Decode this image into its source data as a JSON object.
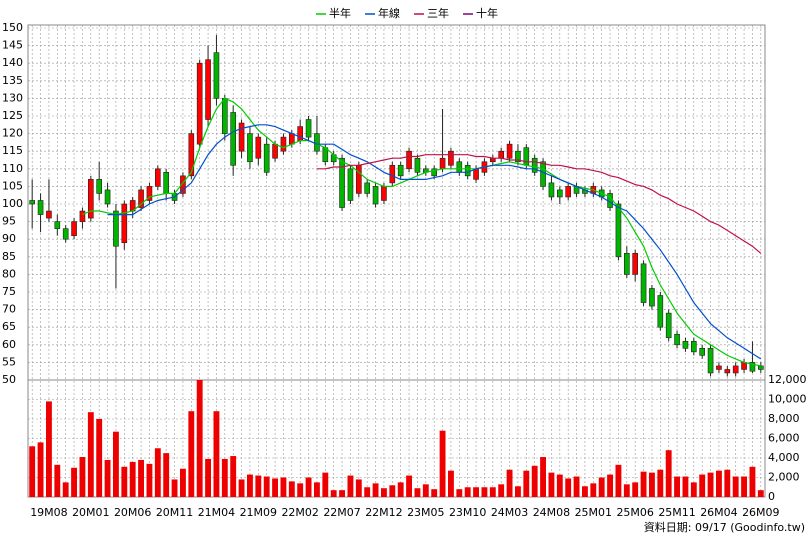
{
  "chart_data": {
    "type": "candlestick",
    "categories": [
      null,
      null,
      "19M08",
      null,
      null,
      null,
      null,
      "20M01",
      null,
      null,
      null,
      null,
      "20M06",
      null,
      null,
      null,
      null,
      "20M11",
      null,
      null,
      null,
      null,
      "21M04",
      null,
      null,
      null,
      null,
      "21M09",
      null,
      null,
      null,
      null,
      "22M02",
      null,
      null,
      null,
      null,
      "22M07",
      null,
      null,
      null,
      null,
      "22M12",
      null,
      null,
      null,
      null,
      "23M05",
      null,
      null,
      null,
      null,
      "23M10",
      null,
      null,
      null,
      null,
      "24M03",
      null,
      null,
      null,
      null,
      "24M08",
      null,
      null,
      null,
      null,
      "25M01",
      null,
      null,
      null,
      null,
      "25M06",
      null,
      null,
      null,
      null,
      "25M11",
      null,
      null,
      null,
      null,
      "26M04",
      null,
      null,
      null,
      null,
      "26M09"
    ],
    "open": [
      101,
      101,
      96,
      95,
      93,
      91,
      95,
      96,
      107,
      104,
      98,
      89,
      98,
      99,
      101,
      105,
      109,
      103,
      103,
      108,
      117,
      124,
      143,
      130,
      126,
      115,
      120,
      113,
      117,
      113,
      115,
      117,
      118,
      124,
      120,
      116,
      114,
      113,
      110,
      103,
      106,
      105,
      101,
      106,
      111,
      110,
      113,
      110,
      110,
      110,
      111,
      112,
      111,
      107,
      109,
      112,
      113,
      113,
      115,
      116,
      113,
      112,
      106,
      104,
      102,
      105,
      104,
      103,
      104,
      103,
      100,
      86,
      80,
      83,
      76,
      74,
      69,
      63,
      61,
      61,
      59,
      59,
      53,
      52,
      52,
      53,
      55,
      54
    ],
    "high": [
      107,
      103,
      107,
      97,
      94,
      96,
      99,
      108,
      112,
      106,
      100,
      101,
      102,
      105,
      106,
      111,
      110,
      104,
      109,
      121,
      141,
      145,
      148,
      131,
      128,
      124,
      122,
      120,
      119,
      118,
      120,
      121,
      124,
      125,
      125,
      117,
      115,
      114,
      111,
      112,
      107,
      106,
      106,
      112,
      112,
      116,
      114,
      111,
      111,
      127,
      116,
      113,
      112,
      111,
      113,
      114,
      116,
      118,
      117,
      117,
      114,
      113,
      108,
      105,
      106,
      106,
      105,
      106,
      105,
      104,
      101,
      88,
      87,
      84,
      77,
      75,
      70,
      64,
      62,
      62,
      60,
      60,
      55,
      54,
      55,
      56,
      61,
      55
    ],
    "low": [
      93,
      92,
      95,
      91,
      89,
      90,
      93,
      95,
      101,
      99,
      76,
      87,
      96,
      98,
      100,
      104,
      101,
      100,
      102,
      107,
      116,
      122,
      128,
      118,
      108,
      113,
      110,
      111,
      108,
      112,
      114,
      116,
      117,
      118,
      114,
      111,
      111,
      98,
      100,
      102,
      102,
      99,
      100,
      105,
      107,
      109,
      108,
      108,
      107,
      109,
      110,
      108,
      107,
      106,
      108,
      111,
      112,
      112,
      111,
      110,
      108,
      104,
      101,
      100,
      101,
      102,
      102,
      102,
      101,
      98,
      84,
      79,
      78,
      71,
      70,
      64,
      61,
      59,
      58,
      57,
      56,
      51,
      52,
      51,
      51,
      52,
      52,
      52
    ],
    "close": [
      100,
      97,
      98,
      93,
      90,
      95,
      98,
      107,
      103,
      100,
      88,
      100,
      101,
      104,
      105,
      110,
      103,
      101,
      108,
      120,
      140,
      141,
      130,
      120,
      111,
      123,
      112,
      119,
      109,
      117,
      119,
      120,
      122,
      119,
      115,
      112,
      112,
      99,
      101,
      111,
      103,
      100,
      105,
      111,
      108,
      115,
      109,
      109,
      108,
      113,
      115,
      109,
      108,
      110,
      112,
      113,
      115,
      117,
      112,
      111,
      109,
      105,
      102,
      102,
      105,
      103,
      103,
      105,
      102,
      99,
      85,
      80,
      86,
      72,
      71,
      65,
      62,
      60,
      59,
      58,
      57,
      52,
      54,
      53,
      54,
      55,
      52.5,
      53
    ],
    "up_color": "#ff0000",
    "down_color": "#00b400",
    "series": [
      {
        "name": "半年",
        "color": "#00cc00",
        "values": [
          null,
          null,
          null,
          null,
          null,
          null,
          97,
          98,
          98,
          97.5,
          97,
          97.5,
          98,
          100,
          102,
          102.5,
          103,
          103,
          106,
          109,
          116,
          122,
          127,
          130,
          129,
          127,
          124,
          121,
          119,
          117,
          116,
          117,
          118,
          118,
          117,
          116,
          114,
          112,
          111,
          109,
          107,
          106,
          105,
          105,
          106,
          107,
          108,
          109,
          109.5,
          110,
          110,
          110,
          110,
          110,
          110.5,
          111,
          111.5,
          112,
          111.5,
          111,
          110.5,
          110,
          108.5,
          107,
          106,
          105,
          104.5,
          104,
          103,
          102,
          99,
          96,
          92,
          88,
          82,
          77,
          73,
          69,
          66,
          63,
          61.5,
          60,
          58.5,
          57,
          56,
          55,
          54.5,
          54
        ]
      },
      {
        "name": "年線",
        "color": "#0050d0",
        "values": [
          null,
          null,
          null,
          null,
          null,
          null,
          null,
          null,
          null,
          97,
          97,
          97,
          97,
          98.5,
          100,
          101,
          101.5,
          102,
          104,
          106,
          110,
          114,
          117,
          119,
          120.5,
          121.5,
          122,
          122.5,
          122.5,
          122,
          121,
          120,
          119,
          118,
          117,
          117,
          117,
          115.5,
          114,
          113,
          112,
          110.5,
          109,
          108,
          107,
          107,
          107,
          107,
          107.5,
          108,
          109,
          109,
          109,
          110,
          110.5,
          111,
          111,
          111,
          110.5,
          110,
          110,
          109,
          108,
          107,
          106,
          105,
          104,
          103,
          102,
          100.5,
          99,
          98,
          95.5,
          93,
          90,
          87,
          83.5,
          80,
          76,
          72,
          69,
          66,
          64,
          62,
          60.5,
          59,
          57.5,
          56
        ]
      },
      {
        "name": "三年",
        "color": "#c0104a",
        "values": [
          null,
          null,
          null,
          null,
          null,
          null,
          null,
          null,
          null,
          null,
          null,
          null,
          null,
          null,
          null,
          null,
          null,
          null,
          null,
          null,
          null,
          null,
          null,
          null,
          null,
          null,
          null,
          null,
          null,
          null,
          null,
          null,
          null,
          null,
          110,
          110,
          110.5,
          110.5,
          111,
          111,
          111.5,
          112,
          112.5,
          113,
          113,
          113.5,
          113.5,
          114,
          114,
          114,
          114,
          114,
          114,
          113.5,
          113.5,
          113,
          113,
          112.5,
          112.5,
          112,
          112,
          111.5,
          111,
          111,
          110.5,
          110,
          110,
          109.5,
          109,
          108,
          107.5,
          106.5,
          105.5,
          105,
          104,
          102.5,
          101.5,
          100,
          99,
          98,
          96.5,
          95,
          94,
          92.5,
          91,
          89.5,
          88,
          86
        ]
      },
      {
        "name": "十年",
        "color": "#800080"
      }
    ],
    "ylim": [
      50,
      150
    ],
    "yticks": [
      50,
      55,
      60,
      65,
      70,
      75,
      80,
      85,
      90,
      95,
      100,
      105,
      110,
      115,
      120,
      125,
      130,
      135,
      140,
      145,
      150
    ],
    "grid": true,
    "volume": {
      "type": "bar",
      "color": "#ee0000",
      "values": [
        5200,
        5600,
        9800,
        3300,
        1500,
        3000,
        4100,
        8700,
        8000,
        3800,
        6700,
        3100,
        3600,
        3800,
        3400,
        5000,
        4500,
        1800,
        2900,
        8800,
        12000,
        3900,
        8800,
        3900,
        4200,
        1800,
        2300,
        2200,
        2100,
        1900,
        2000,
        1600,
        1400,
        2000,
        1500,
        2500,
        700,
        700,
        2200,
        1800,
        1000,
        1400,
        900,
        1200,
        1500,
        2200,
        900,
        1300,
        800,
        6800,
        2700,
        800,
        1000,
        1000,
        1000,
        1000,
        1300,
        2800,
        1100,
        2700,
        3200,
        4100,
        2500,
        2300,
        1900,
        2100,
        1100,
        1400,
        2000,
        2300,
        3300,
        1300,
        1500,
        2600,
        2500,
        2800,
        4800,
        2100,
        2100,
        1500,
        2300,
        2500,
        2700,
        2800,
        2100,
        2100,
        3100,
        700
      ],
      "y2lim": [
        0,
        12000
      ],
      "y2ticks": [
        0,
        {
          "value": 2000,
          "label": "2,000"
        },
        {
          "value": 4000,
          "label": "4,000"
        },
        {
          "value": 6000,
          "label": "6,000"
        },
        {
          "value": 8000,
          "label": "8,000"
        },
        {
          "value": 10000,
          "label": "10,000"
        },
        {
          "value": 12000,
          "label": "12,000"
        }
      ]
    },
    "footer": "資料日期: 09/17 (Goodinfo.tw)"
  }
}
